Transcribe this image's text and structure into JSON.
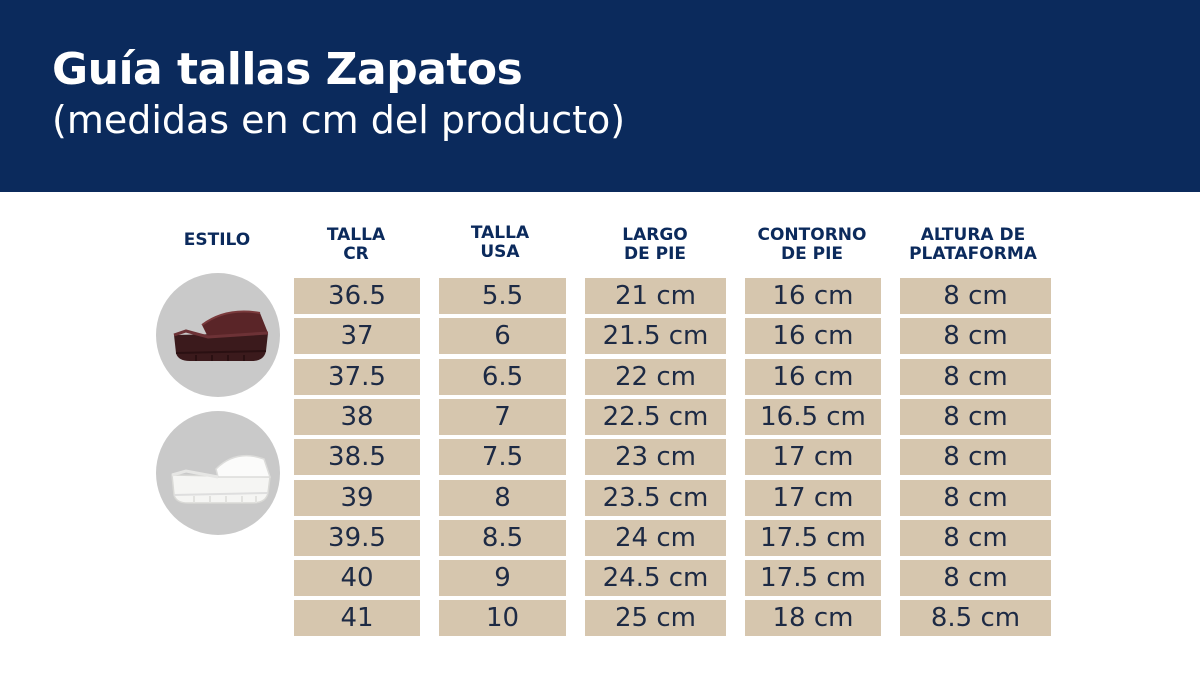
{
  "header": {
    "title": "Guía tallas Zapatos",
    "subtitle": "(medidas en cm del producto)"
  },
  "columns": {
    "estilo": "ESTILO",
    "talla_cr": [
      "TALLA",
      "CR"
    ],
    "talla_usa": [
      "TALLA",
      "USA"
    ],
    "largo": [
      "LARGO",
      "DE PIE"
    ],
    "contorno": [
      "CONTORNO",
      "DE PIE"
    ],
    "altura": [
      "ALTURA DE",
      "PLATAFORMA"
    ]
  },
  "styles": [
    {
      "icon": "burgundy-platform-sandal-icon",
      "color": "#4a1f22"
    },
    {
      "icon": "white-platform-sandal-icon",
      "color": "#f3f3f1"
    }
  ],
  "colors": {
    "header_bg": "#0b2a5c",
    "cell_bg": "#d6c6ae",
    "heading_text": "#0b2a5c",
    "circle_bg": "#c9c9c9"
  },
  "table": {
    "talla_cr": [
      "36.5",
      "37",
      "37.5",
      "38",
      "38.5",
      "39",
      "39.5",
      "40",
      "41"
    ],
    "talla_usa": [
      "5.5",
      "6",
      "6.5",
      "7",
      "7.5",
      "8",
      "8.5",
      "9",
      "10"
    ],
    "largo": [
      "21 cm",
      "21.5 cm",
      "22 cm",
      "22.5 cm",
      "23 cm",
      "23.5 cm",
      "24 cm",
      "24.5 cm",
      "25 cm"
    ],
    "contorno": [
      "16 cm",
      "16 cm",
      "16 cm",
      "16.5 cm",
      "17 cm",
      "17 cm",
      "17.5 cm",
      "17.5 cm",
      "18 cm"
    ],
    "altura": [
      "8 cm",
      "8 cm",
      "8 cm",
      "8 cm",
      "8 cm",
      "8 cm",
      "8 cm",
      "8 cm",
      "8.5 cm"
    ]
  }
}
